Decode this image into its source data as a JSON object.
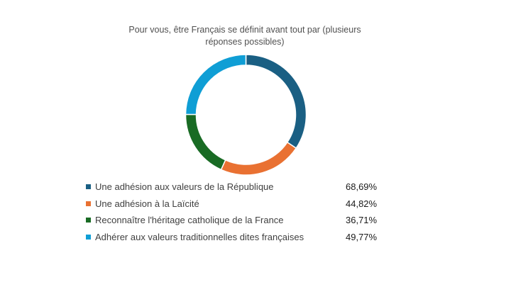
{
  "chart_data": {
    "type": "pie",
    "title": "Pour vous, être Français se définit avant tout par (plusieurs réponses possibles)",
    "categories": [
      "Une adhésion aux valeurs de la République",
      "Une adhésion à la Laïcité",
      "Reconnaître l'héritage catholique de la France",
      "Adhérer aux valeurs traditionnelles dites françaises"
    ],
    "values": [
      68.69,
      44.82,
      36.71,
      49.77
    ],
    "value_labels": [
      "68,69%",
      "44,82%",
      "36,71%",
      "49,77%"
    ],
    "colors": [
      "#1a5f83",
      "#e97132",
      "#196b24",
      "#0f9ed5"
    ],
    "hole": "donut",
    "legend": "bottom"
  }
}
